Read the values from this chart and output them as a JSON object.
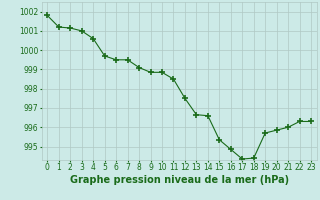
{
  "x": [
    0,
    1,
    2,
    3,
    4,
    5,
    6,
    7,
    8,
    9,
    10,
    11,
    12,
    13,
    14,
    15,
    16,
    17,
    18,
    19,
    20,
    21,
    22,
    23
  ],
  "y": [
    1001.8,
    1001.2,
    1001.15,
    1001.0,
    1000.6,
    999.7,
    999.5,
    999.5,
    999.1,
    998.85,
    998.85,
    998.5,
    997.5,
    996.65,
    996.6,
    995.35,
    994.85,
    994.35,
    994.4,
    995.7,
    995.85,
    996.0,
    996.3,
    996.3
  ],
  "line_color": "#1a6b1a",
  "marker": "+",
  "marker_size": 4,
  "marker_lw": 1.2,
  "bg_color": "#cceae7",
  "grid_color": "#b0c8c4",
  "xlabel": "Graphe pression niveau de la mer (hPa)",
  "xlabel_fontsize": 7,
  "xlabel_color": "#1a6b1a",
  "ytick_labels": [
    995,
    996,
    997,
    998,
    999,
    1000,
    1001,
    1002
  ],
  "xtick_labels": [
    "0",
    "1",
    "2",
    "3",
    "4",
    "5",
    "6",
    "7",
    "8",
    "9",
    "10",
    "11",
    "12",
    "13",
    "14",
    "15",
    "16",
    "17",
    "18",
    "19",
    "20",
    "21",
    "22",
    "23"
  ],
  "ylim": [
    994.3,
    1002.5
  ],
  "xlim": [
    -0.5,
    23.5
  ],
  "tick_fontsize": 5.5,
  "tick_color": "#1a6b1a",
  "line_width": 0.8
}
